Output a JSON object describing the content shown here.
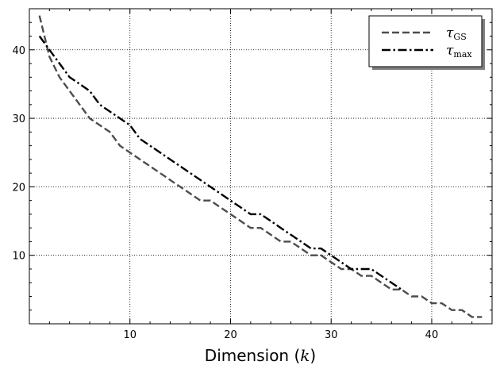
{
  "chart_data": {
    "type": "line",
    "title": "",
    "xlabel": {
      "prefix": "Dimension (",
      "math": "k",
      "suffix": ")"
    },
    "ylabel": "",
    "xlim": [
      0,
      46
    ],
    "ylim": [
      0,
      46
    ],
    "xticks_major": [
      10,
      20,
      30,
      40
    ],
    "xticks_minor": [
      2,
      4,
      6,
      8,
      12,
      14,
      16,
      18,
      22,
      24,
      26,
      28,
      32,
      34,
      36,
      38,
      42,
      44
    ],
    "yticks_major": [
      10,
      20,
      30,
      40
    ],
    "yticks_minor": [
      2,
      4,
      6,
      8,
      12,
      14,
      16,
      18,
      22,
      24,
      26,
      28,
      32,
      34,
      36,
      38,
      42,
      44
    ],
    "grid": "major, dotted",
    "legend_position": "top-right",
    "series": [
      {
        "name": "τ_GS",
        "legend_main": "τ",
        "legend_sub": "GS",
        "color": "#4d4d4d",
        "style": "dashed",
        "x": [
          1,
          2,
          3,
          4,
          5,
          6,
          7,
          8,
          9,
          10,
          11,
          12,
          13,
          14,
          15,
          16,
          17,
          18,
          19,
          20,
          21,
          22,
          23,
          24,
          25,
          26,
          27,
          28,
          29,
          30,
          31,
          32,
          33,
          34,
          35,
          36,
          37,
          38,
          39,
          40,
          41,
          42,
          43,
          44,
          45
        ],
        "y": [
          45,
          39,
          36,
          34,
          32,
          30,
          29,
          28,
          26,
          25,
          24,
          23,
          22,
          21,
          20,
          19,
          18,
          18,
          17,
          16,
          15,
          14,
          14,
          13,
          12,
          12,
          11,
          10,
          10,
          9,
          8,
          8,
          7,
          7,
          6,
          5,
          5,
          4,
          4,
          3,
          3,
          2,
          2,
          1,
          1
        ]
      },
      {
        "name": "τ_max",
        "legend_main": "τ",
        "legend_sub": "max",
        "color": "#000000",
        "style": "dashdot",
        "x": [
          1,
          2,
          3,
          4,
          5,
          6,
          7,
          8,
          9,
          10,
          11,
          12,
          13,
          14,
          15,
          16,
          17,
          18,
          19,
          20,
          21,
          22,
          23,
          24,
          25,
          26,
          27,
          28,
          29,
          30,
          31,
          32,
          33,
          34,
          35,
          36,
          37
        ],
        "y": [
          42,
          40,
          38,
          36,
          35,
          34,
          32,
          31,
          30,
          29,
          27,
          26,
          25,
          24,
          23,
          22,
          21,
          20,
          19,
          18,
          17,
          16,
          16,
          15,
          14,
          13,
          12,
          11,
          11,
          10,
          9,
          8,
          8,
          8,
          7,
          6,
          5
        ]
      }
    ]
  }
}
